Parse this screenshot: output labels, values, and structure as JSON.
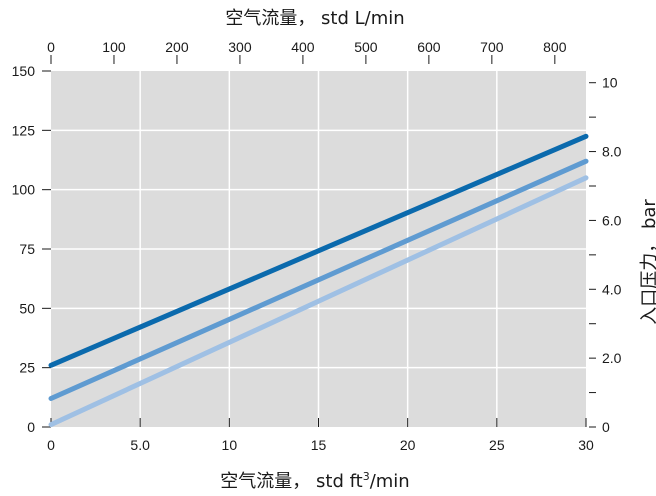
{
  "chart_data": {
    "type": "line",
    "title": "",
    "x": [
      0,
      30
    ],
    "series": [
      {
        "values": [
          26,
          122.5
        ],
        "color": "#0b6aad"
      },
      {
        "values": [
          12,
          112
        ],
        "color": "#5f9bd1"
      },
      {
        "values": [
          1,
          105
        ],
        "color": "#9fc0e4"
      }
    ],
    "xlim": [
      0,
      30
    ],
    "ylim": [
      0,
      150
    ],
    "x_ticks": [
      0,
      5,
      10,
      15,
      20,
      25,
      30
    ],
    "x_tick_labels": [
      "0",
      "5.0",
      "10",
      "15",
      "20",
      "25",
      "30"
    ],
    "y_ticks": [
      0,
      25,
      50,
      75,
      100,
      125,
      150
    ],
    "y_tick_labels": [
      "0",
      "25",
      "50",
      "75",
      "100",
      "125",
      "150"
    ],
    "xlabel_main": "空气流量，  std ft",
    "xlabel_sup": "3",
    "xlabel_tail": "/min",
    "top_axis": {
      "label": "空气流量，  std L/min",
      "lim": [
        0,
        849.5
      ],
      "ticks": [
        0,
        100,
        200,
        300,
        400,
        500,
        600,
        700,
        800
      ],
      "tick_labels": [
        "0",
        "100",
        "200",
        "300",
        "400",
        "500",
        "600",
        "700",
        "800"
      ]
    },
    "right_axis": {
      "label": "入口压力，  bar",
      "lim": [
        0,
        10.34
      ],
      "ticks": [
        0,
        1,
        2,
        3,
        4,
        5,
        6,
        7,
        8,
        9,
        10
      ],
      "tick_labels": [
        "0",
        "",
        "2.0",
        "",
        "4.0",
        "",
        "6.0",
        "",
        "8.0",
        "",
        "10"
      ]
    },
    "grid": true,
    "plot_background": "#dcdcdc",
    "grid_color": "#ffffff"
  }
}
